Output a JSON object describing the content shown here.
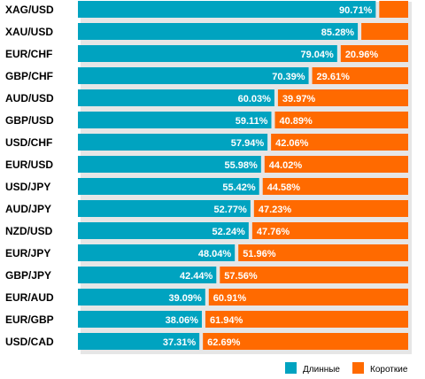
{
  "chart_data": {
    "type": "bar",
    "stacked": true,
    "orientation": "horizontal",
    "value_unit": "%",
    "xlim": [
      0,
      100
    ],
    "grid": false,
    "legend_position": "bottom-right",
    "categories": [
      "XAG/USD",
      "XAU/USD",
      "EUR/CHF",
      "GBP/CHF",
      "AUD/USD",
      "GBP/USD",
      "USD/CHF",
      "EUR/USD",
      "USD/JPY",
      "AUD/JPY",
      "NZD/USD",
      "EUR/JPY",
      "GBP/JPY",
      "EUR/AUD",
      "EUR/GBP",
      "USD/CAD"
    ],
    "series": [
      {
        "name": "Длинные",
        "color": "#00a3c0",
        "values": [
          90.71,
          85.28,
          79.04,
          70.39,
          60.03,
          59.11,
          57.94,
          55.98,
          55.42,
          52.77,
          52.24,
          48.04,
          42.44,
          39.09,
          38.06,
          37.31
        ],
        "labels": [
          "90.71%",
          "85.28%",
          "79.04%",
          "70.39%",
          "60.03%",
          "59.11%",
          "57.94%",
          "55.98%",
          "55.42%",
          "52.77%",
          "52.24%",
          "48.04%",
          "42.44%",
          "39.09%",
          "38.06%",
          "37.31%"
        ]
      },
      {
        "name": "Короткие",
        "color": "#ff6a00",
        "values": [
          9.29,
          14.72,
          20.96,
          29.61,
          39.97,
          40.89,
          42.06,
          44.02,
          44.58,
          47.23,
          47.76,
          51.96,
          57.56,
          60.91,
          61.94,
          62.69
        ],
        "labels": [
          "",
          "",
          "20.96%",
          "29.61%",
          "39.97%",
          "40.89%",
          "42.06%",
          "44.02%",
          "44.58%",
          "47.23%",
          "47.76%",
          "51.96%",
          "57.56%",
          "60.91%",
          "61.94%",
          "62.69%"
        ]
      }
    ]
  },
  "legend": {
    "long_label": "Длинные",
    "short_label": "Короткие"
  }
}
